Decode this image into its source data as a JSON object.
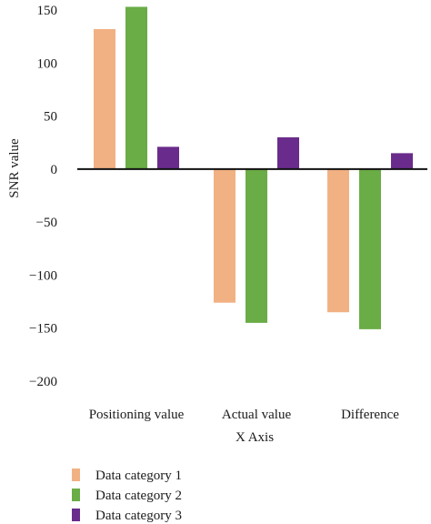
{
  "chart_data": {
    "type": "bar",
    "title": "",
    "xlabel": "X Axis",
    "ylabel": "SNR value",
    "ylim": [
      -200,
      150
    ],
    "yticks": [
      150,
      100,
      50,
      0,
      -50,
      -100,
      -150,
      -200
    ],
    "ytick_labels": [
      "150",
      "100",
      "50",
      "0",
      "−50",
      "−100",
      "−150",
      "−200"
    ],
    "categories": [
      "Positioning value",
      "Actual value",
      "Difference"
    ],
    "series": [
      {
        "name": "Data category 1",
        "color": "#f2b183",
        "values": [
          132,
          -126,
          -135
        ]
      },
      {
        "name": "Data category 2",
        "color": "#6aac45",
        "values": [
          153,
          -145,
          -151
        ]
      },
      {
        "name": "Data category 3",
        "color": "#6a2c8c",
        "values": [
          21,
          30,
          15
        ]
      }
    ],
    "grid": false,
    "legend_position": "bottom-left"
  }
}
